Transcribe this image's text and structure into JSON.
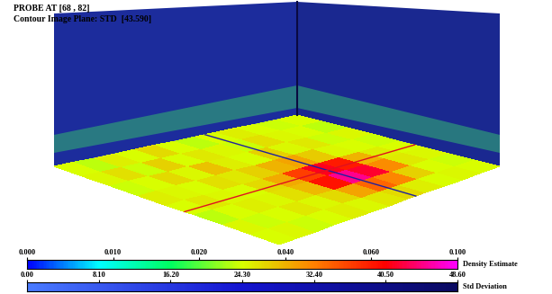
{
  "chart_data": {
    "type": "heatmap",
    "header": {
      "probe": "PROBE AT [68 , 82]",
      "plane": "Contour Image Plane: STD  [43.590]"
    },
    "density": [
      [
        0.03,
        0.028,
        0.032,
        0.03,
        0.035,
        0.03,
        0.028,
        0.03,
        0.032,
        0.03,
        0.029,
        0.03
      ],
      [
        0.031,
        0.034,
        0.029,
        0.036,
        0.03,
        0.033,
        0.031,
        0.029,
        0.034,
        0.031,
        0.03,
        0.028
      ],
      [
        0.029,
        0.03,
        0.035,
        0.031,
        0.038,
        0.032,
        0.03,
        0.036,
        0.031,
        0.033,
        0.029,
        0.031
      ],
      [
        0.032,
        0.031,
        0.03,
        0.034,
        0.033,
        0.036,
        0.04,
        0.042,
        0.037,
        0.031,
        0.03,
        0.029
      ],
      [
        0.03,
        0.033,
        0.031,
        0.03,
        0.035,
        0.041,
        0.055,
        0.07,
        0.06,
        0.04,
        0.032,
        0.03
      ],
      [
        0.028,
        0.03,
        0.032,
        0.031,
        0.034,
        0.039,
        0.062,
        0.085,
        0.072,
        0.045,
        0.033,
        0.031
      ],
      [
        0.031,
        0.029,
        0.03,
        0.033,
        0.031,
        0.035,
        0.042,
        0.05,
        0.046,
        0.036,
        0.03,
        0.029
      ],
      [
        0.03,
        0.031,
        0.029,
        0.03,
        0.032,
        0.031,
        0.033,
        0.035,
        0.032,
        0.03,
        0.031,
        0.03
      ]
    ],
    "colorbars": [
      {
        "label": "Density Estimate",
        "range": [
          0,
          0.1
        ],
        "ticks": [
          {
            "value": 0,
            "label": "0.000"
          },
          {
            "value": 0.01,
            "label": "0.010"
          },
          {
            "value": 0.02,
            "label": "0.020"
          },
          {
            "value": 0.04,
            "label": "0.040"
          },
          {
            "value": 0.06,
            "label": "0.060"
          },
          {
            "value": 0.1,
            "label": "0.100"
          }
        ]
      },
      {
        "label": "Std Deviation",
        "range": [
          0,
          48.6
        ],
        "ticks": [
          {
            "value": 0,
            "label": "0.00"
          },
          {
            "value": 8.1,
            "label": "8.10"
          },
          {
            "value": 16.2,
            "label": "16.20"
          },
          {
            "value": 24.3,
            "label": "24.30"
          },
          {
            "value": 32.4,
            "label": "32.40"
          },
          {
            "value": 40.5,
            "label": "40.50"
          },
          {
            "value": 48.6,
            "label": "48.60"
          }
        ]
      }
    ]
  }
}
